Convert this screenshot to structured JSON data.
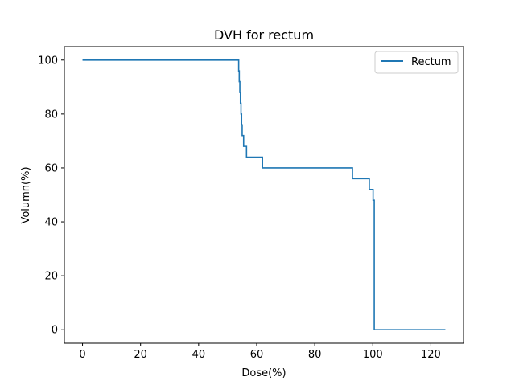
{
  "chart_data": {
    "type": "line",
    "title": "DVH for rectum",
    "xlabel": "Dose(%)",
    "ylabel": "Volumn(%)",
    "xlim": [
      -6.25,
      131.25
    ],
    "ylim": [
      -5,
      105
    ],
    "xticks": [
      0,
      20,
      40,
      60,
      80,
      100,
      120
    ],
    "yticks": [
      0,
      20,
      40,
      60,
      80,
      100
    ],
    "grid": false,
    "legend": {
      "position": "top-right",
      "entries": [
        "Rectum"
      ]
    },
    "series": [
      {
        "name": "Rectum",
        "color": "#1f77b4",
        "step": true,
        "points": [
          [
            0,
            100
          ],
          [
            53.7,
            100
          ],
          [
            53.8,
            96
          ],
          [
            54.0,
            92
          ],
          [
            54.2,
            88
          ],
          [
            54.4,
            84
          ],
          [
            54.6,
            80
          ],
          [
            54.8,
            76
          ],
          [
            55.0,
            72
          ],
          [
            55.5,
            68
          ],
          [
            56.5,
            64
          ],
          [
            62.0,
            60
          ],
          [
            93.0,
            56
          ],
          [
            98.8,
            52
          ],
          [
            100.1,
            48
          ],
          [
            100.5,
            0
          ],
          [
            125,
            0
          ]
        ]
      }
    ]
  }
}
